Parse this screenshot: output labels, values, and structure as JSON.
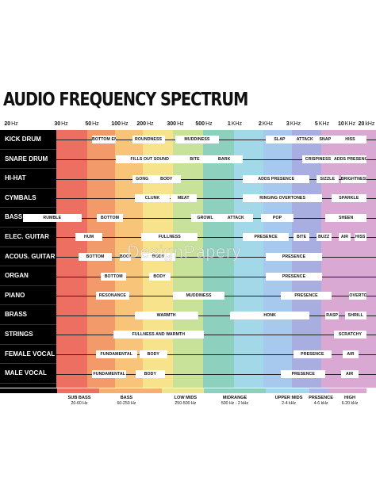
{
  "title": "AUDIO FREQUENCY SPECTRUM",
  "watermark": "DesignPapery",
  "colors": {
    "bands": [
      "#ec6f62",
      "#f29a6a",
      "#f8c47a",
      "#f6e38c",
      "#c8e29a",
      "#8dd0bd",
      "#a3d8e8",
      "#a8c9ee",
      "#a8aee0",
      "#d9a9d4"
    ],
    "row_line": "#1c1c1c",
    "label_bg": "#ffffff"
  },
  "freq_ticks": [
    {
      "num": "20",
      "unit": "Hz"
    },
    {
      "num": "30",
      "unit": "Hz"
    },
    {
      "num": "50",
      "unit": "Hz"
    },
    {
      "num": "100",
      "unit": "Hz"
    },
    {
      "num": "200",
      "unit": "Hz"
    },
    {
      "num": "300",
      "unit": "Hz"
    },
    {
      "num": "500",
      "unit": "Hz"
    },
    {
      "num": "1",
      "unit": "KHz"
    },
    {
      "num": "2",
      "unit": "KHz"
    },
    {
      "num": "3",
      "unit": "KHz"
    },
    {
      "num": "5",
      "unit": "KHz"
    },
    {
      "num": "10",
      "unit": "KHz"
    },
    {
      "num": "20",
      "unit": "kHz"
    }
  ],
  "instruments": [
    {
      "name": "KICK DRUM",
      "labels": [
        {
          "text": "BOTTOM END",
          "from": 50,
          "to": 90
        },
        {
          "text": "ROUNDNESS",
          "from": 140,
          "to": 260
        },
        {
          "text": "MUDDINESS",
          "from": 300,
          "to": 700
        },
        {
          "text": "SLAP",
          "from": 2000,
          "to": 3000
        },
        {
          "text": "ATTACK",
          "from": 3000,
          "to": 4500
        },
        {
          "text": "SNAP",
          "from": 4500,
          "to": 7000
        },
        {
          "text": "HISS",
          "from": 7000,
          "to": 20000
        }
      ]
    },
    {
      "name": "SNARE DRUM",
      "labels": [
        {
          "text": "FILLS OUT SOUND",
          "from": 90,
          "to": 350
        },
        {
          "text": "BITE",
          "from": 350,
          "to": 520
        },
        {
          "text": "BARK",
          "from": 520,
          "to": 1200
        },
        {
          "text": "CRISPINESS",
          "from": 3500,
          "to": 7000
        },
        {
          "text": "ADDS PRESENCE",
          "from": 7000,
          "to": 20000
        }
      ]
    },
    {
      "name": "HI-HAT",
      "labels": [
        {
          "text": "GONG",
          "from": 140,
          "to": 220
        },
        {
          "text": "BODY",
          "from": 220,
          "to": 330
        },
        {
          "text": "ADDS PRESENCE",
          "from": 1200,
          "to": 4000
        },
        {
          "text": "SIZZLE",
          "from": 4500,
          "to": 8000
        },
        {
          "text": "BRIGHTNESS",
          "from": 8500,
          "to": 20000
        }
      ]
    },
    {
      "name": "CYMBALS",
      "labels": [
        {
          "text": "CLUNK",
          "from": 150,
          "to": 280
        },
        {
          "text": "MEAT",
          "from": 280,
          "to": 440
        },
        {
          "text": "RINGING OVERTONES",
          "from": 1200,
          "to": 5000
        },
        {
          "text": "SPARKLE",
          "from": 6500,
          "to": 20000
        }
      ]
    },
    {
      "name": "BASS GUITAR",
      "labels": [
        {
          "text": "RUMBLE",
          "from": 22,
          "to": 42
        },
        {
          "text": "BOTTOM",
          "from": 56,
          "to": 110
        },
        {
          "text": "GROWL",
          "from": 400,
          "to": 700
        },
        {
          "text": "ATTACK",
          "from": 700,
          "to": 1500
        },
        {
          "text": "POP",
          "from": 1800,
          "to": 3000
        },
        {
          "text": "SHEEN",
          "from": 5500,
          "to": 20000
        }
      ]
    },
    {
      "name": "ELEC. GUITAR",
      "labels": [
        {
          "text": "HUM",
          "from": 38,
          "to": 65
        },
        {
          "text": "FULLNESS",
          "from": 180,
          "to": 450
        },
        {
          "text": "PRESENCE",
          "from": 1200,
          "to": 2800
        },
        {
          "text": "BITE",
          "from": 3000,
          "to": 4000
        },
        {
          "text": "BUZZ",
          "from": 4500,
          "to": 6500
        },
        {
          "text": "AIR",
          "from": 8000,
          "to": 11500
        },
        {
          "text": "HISS",
          "from": 13000,
          "to": 20000
        }
      ]
    },
    {
      "name": "ACOUS. GUITAR",
      "labels": [
        {
          "text": "BOTTOM",
          "from": 40,
          "to": 82
        },
        {
          "text": "BOOM",
          "from": 100,
          "to": 135
        },
        {
          "text": "BODY",
          "from": 180,
          "to": 300
        },
        {
          "text": "PRESENCE",
          "from": 2000,
          "to": 5000
        }
      ]
    },
    {
      "name": "ORGAN",
      "labels": [
        {
          "text": "BOTTOM",
          "from": 62,
          "to": 120
        },
        {
          "text": "BODY",
          "from": 210,
          "to": 280
        },
        {
          "text": "PRESENCE",
          "from": 2000,
          "to": 5000
        }
      ]
    },
    {
      "name": "PIANO",
      "labels": [
        {
          "text": "RESONANCE",
          "from": 55,
          "to": 130
        },
        {
          "text": "MUDDINESS",
          "from": 290,
          "to": 800
        },
        {
          "text": "PRESENCE",
          "from": 2500,
          "to": 6500
        },
        {
          "text": "OVERTONES",
          "from": 11000,
          "to": 20000
        }
      ]
    },
    {
      "name": "BRASS",
      "labels": [
        {
          "text": "WARMTH",
          "from": 150,
          "to": 450
        },
        {
          "text": "HONK",
          "from": 900,
          "to": 4000
        },
        {
          "text": "RASP",
          "from": 5500,
          "to": 8000
        },
        {
          "text": "SHRILL",
          "from": 9500,
          "to": 20000
        }
      ]
    },
    {
      "name": "STRINGS",
      "labels": [
        {
          "text": "FULLNESS AND WARMTH",
          "from": 85,
          "to": 500
        },
        {
          "text": "SCRATCHY",
          "from": 7000,
          "to": 20000
        }
      ]
    },
    {
      "name": "FEMALE VOCAL",
      "labels": [
        {
          "text": "FUNDAMENTAL",
          "from": 55,
          "to": 160
        },
        {
          "text": "BODY",
          "from": 170,
          "to": 270
        },
        {
          "text": "PRESENCE",
          "from": 3000,
          "to": 6500
        },
        {
          "text": "AIR",
          "from": 9000,
          "to": 15000
        }
      ]
    },
    {
      "name": "MALE VOCAL",
      "labels": [
        {
          "text": "FUNDAMENTAL",
          "from": 50,
          "to": 120
        },
        {
          "text": "BODY",
          "from": 155,
          "to": 260
        },
        {
          "text": "PRESENCE",
          "from": 2500,
          "to": 5500
        },
        {
          "text": "AIR",
          "from": 8500,
          "to": 15000
        }
      ]
    }
  ],
  "ranges": [
    {
      "name": "SUB BASS",
      "span": "20-60 Hz"
    },
    {
      "name": "BASS",
      "span": "60-250 Hz"
    },
    {
      "name": "LOW MIDS",
      "span": "250-500 Hz"
    },
    {
      "name": "MIDRANGE",
      "span": "500 Hz - 2 kHz"
    },
    {
      "name": "UPPER MIDS",
      "span": "2-4 kHz"
    },
    {
      "name": "PRESENCE",
      "span": "4-6 kHz"
    },
    {
      "name": "HIGH",
      "span": "6-20 kHz"
    }
  ],
  "range_bands": [
    {
      "from": 20,
      "to": 60,
      "color": "#ec6f62"
    },
    {
      "from": 60,
      "to": 250,
      "color": "#f5b06f"
    },
    {
      "from": 250,
      "to": 500,
      "color": "#ece58e"
    },
    {
      "from": 500,
      "to": 2000,
      "color": "#8dd0bd"
    },
    {
      "from": 2000,
      "to": 4000,
      "color": "#a3d8e8"
    },
    {
      "from": 4000,
      "to": 6000,
      "color": "#a8b8e8"
    },
    {
      "from": 6000,
      "to": 20000,
      "color": "#d9a9d4"
    }
  ],
  "range_label_freq": [
    38,
    120,
    360,
    1000,
    2800,
    4900,
    11000
  ]
}
